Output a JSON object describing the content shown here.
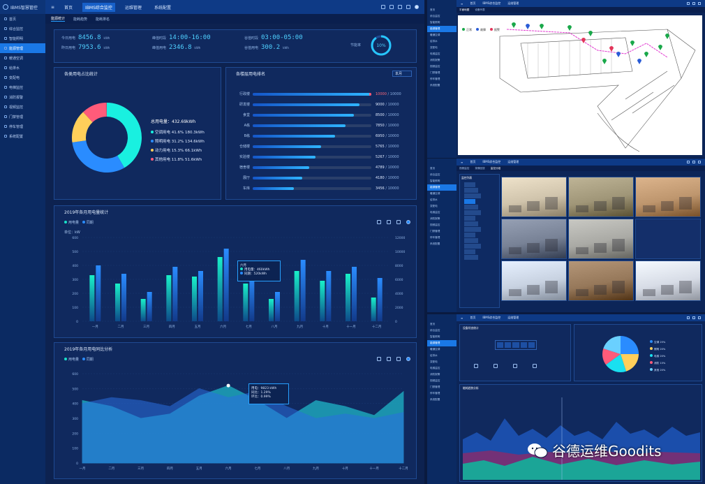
{
  "app": {
    "brand": "IBMS智慧管控",
    "nav_tabs": [
      "首页",
      "IBMS综合监控",
      "运维管理",
      "系统配置"
    ],
    "active_nav": 1
  },
  "subtabs": [
    "能源统计",
    "能耗趋势",
    "能耗排名"
  ],
  "sidebar": {
    "items": [
      "首页",
      "综合监控",
      "智能照明",
      "能源管理",
      "暖通空调",
      "给排水",
      "变配电",
      "电梯监控",
      "消防报警",
      "视频监控",
      "门禁管理",
      "停车管理",
      "系统配置"
    ],
    "active": 3
  },
  "stats": [
    {
      "label1": "今日用电",
      "val1": "8456.8",
      "unit1": "kWh",
      "label2": "昨日用电",
      "val2": "7953.6",
      "unit2": "kWh"
    },
    {
      "label1": "峰值时段",
      "val1": "14:00-16:00",
      "unit1": "",
      "label2": "峰值用电",
      "val2": "2346.8",
      "unit2": "kWh"
    },
    {
      "label1": "谷值时段",
      "val1": "03:00-05:00",
      "unit1": "",
      "label2": "谷值用电",
      "val2": "300.2",
      "unit2": "kWh"
    },
    {
      "label1": "节能率",
      "val1": "10%",
      "unit1": "",
      "ring": 0.1
    }
  ],
  "pie_panel": {
    "title": "各类用电占比统计",
    "total_label": "总用电量：",
    "total_value": "432.69kWh",
    "legend": [
      {
        "label": "空调用电",
        "pct": "41.6%",
        "value": "180.3kWh",
        "color": "#19f0e0"
      },
      {
        "label": "照明用电",
        "pct": "31.2%",
        "value": "134.6kWh",
        "color": "#2a8cff"
      },
      {
        "label": "动力用电",
        "pct": "15.3%",
        "value": "66.1kWh",
        "color": "#ffcf5a"
      },
      {
        "label": "其他用电",
        "pct": "11.8%",
        "value": "51.6kWh",
        "color": "#ff5b7a"
      }
    ]
  },
  "rank_panel": {
    "title": "各楼层用电排名",
    "select": "本月",
    "rows": [
      {
        "name": "行政楼",
        "value": "10000",
        "max": "10000",
        "v": 10000
      },
      {
        "name": "研发楼",
        "value": "9000",
        "max": "10000",
        "v": 9000
      },
      {
        "name": "食堂",
        "value": "8500",
        "max": "10000",
        "v": 8500
      },
      {
        "name": "A栋",
        "value": "7850",
        "max": "10000",
        "v": 7850
      },
      {
        "name": "B栋",
        "value": "6950",
        "max": "10000",
        "v": 6950
      },
      {
        "name": "仓储楼",
        "value": "5765",
        "max": "10000",
        "v": 5765
      },
      {
        "name": "实验楼",
        "value": "5267",
        "max": "10000",
        "v": 5267
      },
      {
        "name": "宿舍楼",
        "value": "4789",
        "max": "10000",
        "v": 4789
      },
      {
        "name": "展厅",
        "value": "4180",
        "max": "10000",
        "v": 4180
      },
      {
        "name": "车库",
        "value": "3456",
        "max": "10000",
        "v": 3456
      }
    ]
  },
  "chart_data": [
    {
      "type": "bar",
      "title": "2019年各月用电量统计",
      "categories": [
        "一月",
        "二月",
        "三月",
        "四月",
        "五月",
        "六月",
        "七月",
        "八月",
        "九月",
        "十月",
        "十一月",
        "十二月"
      ],
      "series": [
        {
          "name": "用电量",
          "values": [
            330,
            270,
            160,
            330,
            320,
            460,
            270,
            160,
            360,
            290,
            340,
            170
          ]
        },
        {
          "name": "同期",
          "values": [
            400,
            340,
            210,
            390,
            360,
            520,
            330,
            210,
            440,
            360,
            390,
            310
          ]
        }
      ],
      "ylabel": "单位：kW",
      "ylim": [
        0,
        600
      ],
      "y2lim": [
        0,
        12000
      ],
      "tooltip": {
        "title": "六月",
        "line1": "用电量：460kWh",
        "line2": "同期：520kWh"
      }
    },
    {
      "type": "area",
      "title": "2019年各月用电同比分析",
      "categories": [
        "一月",
        "二月",
        "三月",
        "四月",
        "五月",
        "六月",
        "七月",
        "八月",
        "九月",
        "十月",
        "十一月",
        "十二月"
      ],
      "series": [
        {
          "name": "用电量",
          "values": [
            420,
            380,
            300,
            330,
            450,
            520,
            420,
            300,
            420,
            380,
            320,
            480
          ]
        },
        {
          "name": "同期",
          "values": [
            400,
            440,
            420,
            380,
            500,
            440,
            480,
            380,
            300,
            330,
            300,
            340
          ]
        }
      ],
      "ylim": [
        0,
        600
      ],
      "tooltip": {
        "line1": "用电：9823 kWh",
        "line2": "同比：1.29%",
        "line3": "环比：0.99%"
      }
    }
  ],
  "right_windows": {
    "map_tabs": [
      "平面地图",
      "设备列表"
    ],
    "map_legend": [
      "正常",
      "故障",
      "报警"
    ],
    "cam_tabs": [
      "视频监控",
      "录像回放",
      "监控分组"
    ],
    "cam_tree_title": "监控列表",
    "dist_panel_title": "设备状态统计",
    "dist_pie_labels": [
      "空调 25%",
      "照明 20%",
      "电梯 20%",
      "消防 15%",
      "其他 20%"
    ],
    "trend_title": "能耗趋势分析"
  },
  "watermark": "谷德运维Goodits"
}
